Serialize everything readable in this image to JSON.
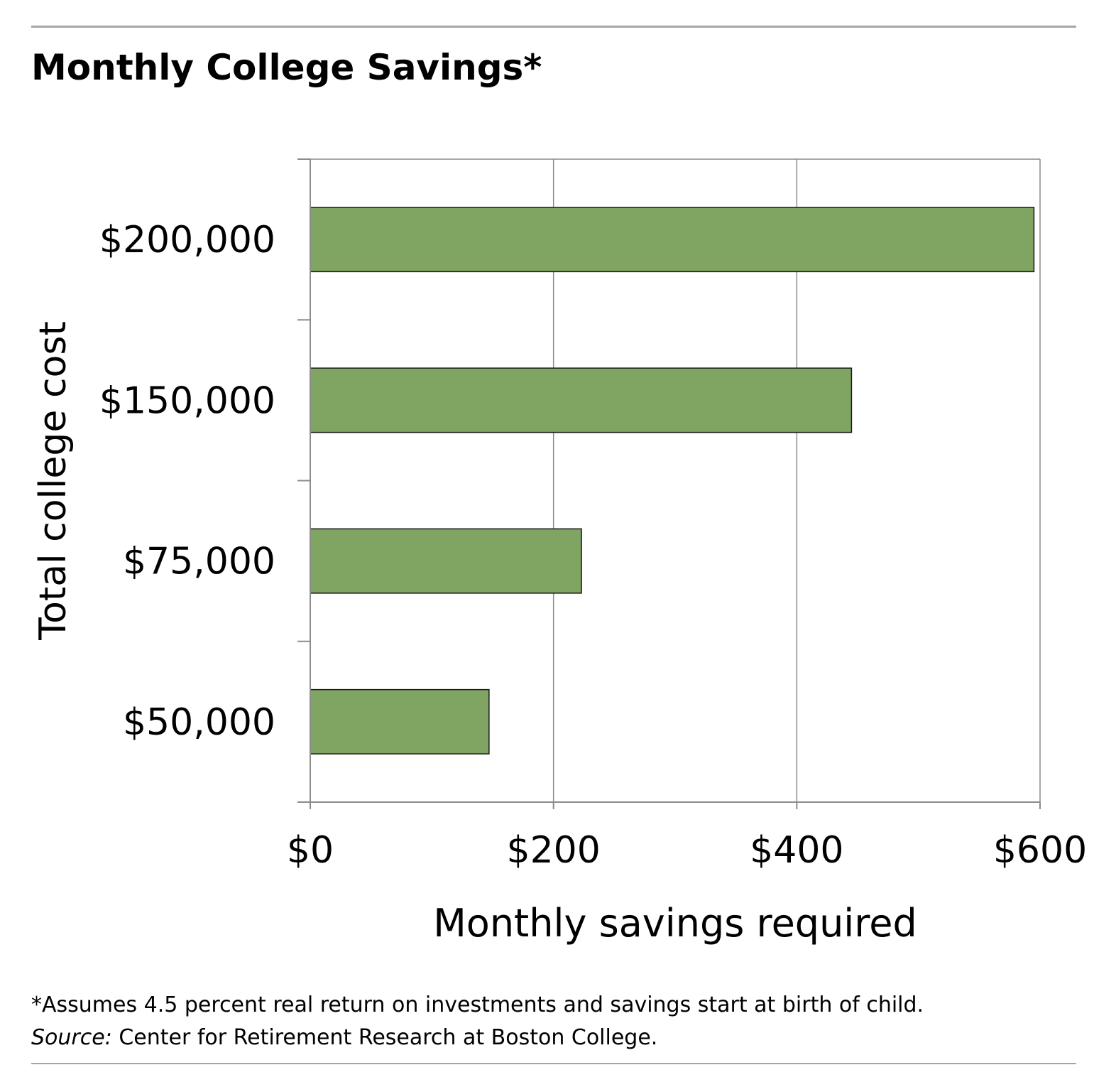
{
  "title": "Monthly College Savings*",
  "chart_data": {
    "type": "bar",
    "orientation": "horizontal",
    "categories": [
      "$200,000",
      "$150,000",
      "$75,000",
      "$50,000"
    ],
    "values": [
      595,
      445,
      223,
      147
    ],
    "xlim": [
      0,
      600
    ],
    "xticks": [
      0,
      200,
      400,
      600
    ],
    "xtick_labels": [
      "$0",
      "$200",
      "$400",
      "$600"
    ],
    "xlabel": "Monthly savings required",
    "ylabel": "Total college cost",
    "grid": "vertical",
    "bar_color": "#80a462",
    "bar_edge_color": "#1a1a1a"
  },
  "footnote": {
    "note": "*Assumes 4.5 percent real return on investments and savings start at birth of child.",
    "source_label": "Source:",
    "source_text": " Center for Retirement Research at Boston College."
  }
}
